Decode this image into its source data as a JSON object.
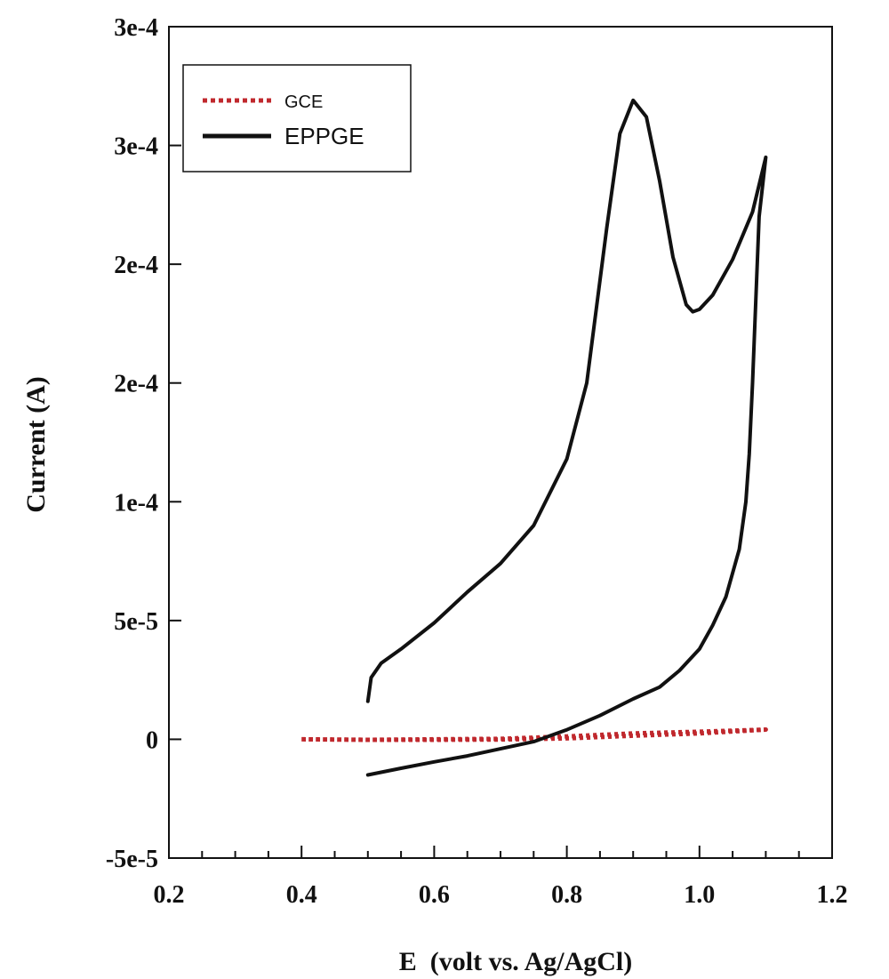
{
  "chart_data": {
    "type": "line",
    "title": "",
    "xlabel": "E  (volt vs. Ag/AgCl)",
    "ylabel": "Current (A)",
    "xlim": [
      0.2,
      1.2
    ],
    "ylim": [
      -5e-05,
      0.0003
    ],
    "x_ticks": [
      {
        "value": 0.2,
        "label": "0.2"
      },
      {
        "value": 0.4,
        "label": "0.4"
      },
      {
        "value": 0.6,
        "label": "0.6"
      },
      {
        "value": 0.8,
        "label": "0.8"
      },
      {
        "value": 1.0,
        "label": "1.0"
      },
      {
        "value": 1.2,
        "label": "1.2"
      }
    ],
    "y_ticks": [
      {
        "value": -5e-05,
        "label": "-5e-5"
      },
      {
        "value": 0,
        "label": "0"
      },
      {
        "value": 5e-05,
        "label": "5e-5"
      },
      {
        "value": 0.0001,
        "label": "1e-4"
      },
      {
        "value": 0.00015,
        "label": "2e-4"
      },
      {
        "value": 0.0002,
        "label": "2e-4"
      },
      {
        "value": 0.00025,
        "label": "3e-4"
      },
      {
        "value": 0.0003,
        "label": "3e-4"
      }
    ],
    "grid": false,
    "legend": {
      "position": "top-left"
    },
    "series": [
      {
        "name": "GCE",
        "color": "#c0282d",
        "style": "dotted",
        "points": [
          [
            0.4,
            0.0
          ],
          [
            0.5,
            -2e-07
          ],
          [
            0.6,
            0.0
          ],
          [
            0.7,
            2e-07
          ],
          [
            0.8,
            1.2e-06
          ],
          [
            0.9,
            2.5e-06
          ],
          [
            1.0,
            3.2e-06
          ],
          [
            1.1,
            4.1e-06
          ],
          [
            1.1,
            4.1e-06
          ],
          [
            1.0,
            2.5e-06
          ],
          [
            0.9,
            1.5e-06
          ],
          [
            0.8,
            4e-07
          ],
          [
            0.7,
            -1e-07
          ],
          [
            0.6,
            -2e-07
          ],
          [
            0.5,
            -2e-07
          ],
          [
            0.4,
            0.0
          ]
        ]
      },
      {
        "name": "EPPGE",
        "color": "#111111",
        "style": "solid",
        "points": [
          [
            0.5,
            1.6e-05
          ],
          [
            0.505,
            2.6e-05
          ],
          [
            0.52,
            3.2e-05
          ],
          [
            0.55,
            3.8e-05
          ],
          [
            0.6,
            4.9e-05
          ],
          [
            0.65,
            6.2e-05
          ],
          [
            0.7,
            7.4e-05
          ],
          [
            0.75,
            9e-05
          ],
          [
            0.8,
            0.000118
          ],
          [
            0.83,
            0.00015
          ],
          [
            0.86,
            0.000215
          ],
          [
            0.88,
            0.000255
          ],
          [
            0.9,
            0.000269
          ],
          [
            0.92,
            0.000262
          ],
          [
            0.94,
            0.000235
          ],
          [
            0.96,
            0.000203
          ],
          [
            0.98,
            0.000183
          ],
          [
            0.99,
            0.00018
          ],
          [
            1.0,
            0.000181
          ],
          [
            1.02,
            0.000187
          ],
          [
            1.05,
            0.000202
          ],
          [
            1.08,
            0.000222
          ],
          [
            1.1,
            0.000245
          ],
          [
            1.09,
            0.00022
          ],
          [
            1.085,
            0.000185
          ],
          [
            1.08,
            0.00015
          ],
          [
            1.075,
            0.00012
          ],
          [
            1.07,
            0.0001
          ],
          [
            1.06,
            8e-05
          ],
          [
            1.04,
            6e-05
          ],
          [
            1.02,
            4.8e-05
          ],
          [
            1.0,
            3.8e-05
          ],
          [
            0.97,
            2.9e-05
          ],
          [
            0.94,
            2.2e-05
          ],
          [
            0.9,
            1.7e-05
          ],
          [
            0.85,
            1e-05
          ],
          [
            0.8,
            4e-06
          ],
          [
            0.75,
            -1e-06
          ],
          [
            0.7,
            -4e-06
          ],
          [
            0.65,
            -7e-06
          ],
          [
            0.6,
            -9.5e-06
          ],
          [
            0.55,
            -1.22e-05
          ],
          [
            0.5,
            -1.5e-05
          ]
        ]
      }
    ]
  }
}
